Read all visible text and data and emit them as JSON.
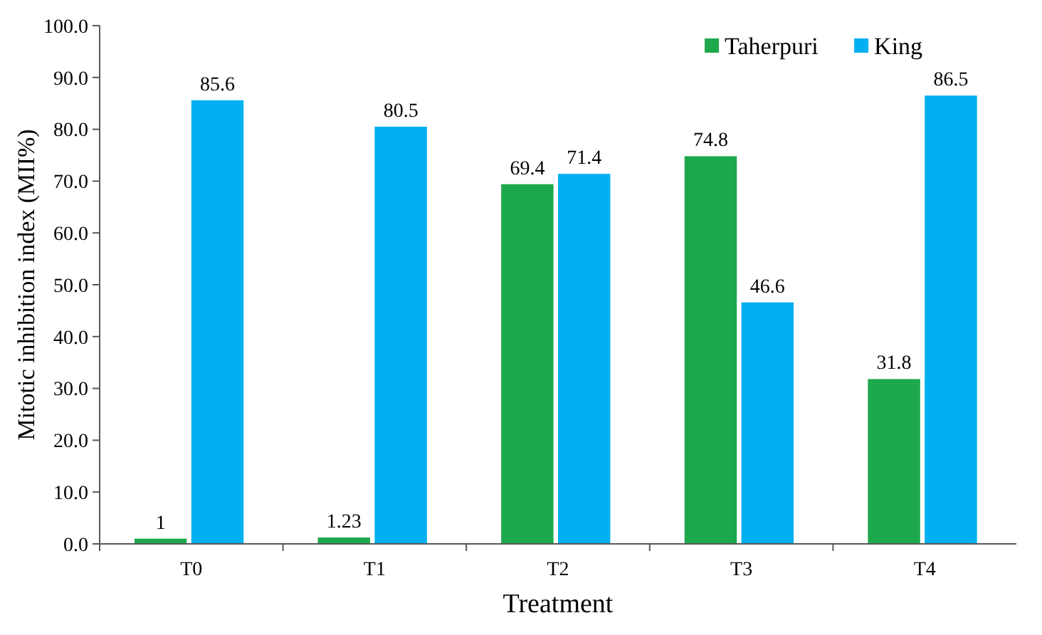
{
  "chart_data": {
    "type": "bar",
    "xlabel": "Treatment",
    "ylabel": "Mitotic inhibition index (MII%)",
    "categories": [
      "T0",
      "T1",
      "T2",
      "T3",
      "T4"
    ],
    "series": [
      {
        "name": "Taherpuri",
        "color": "#1ea84c",
        "values": [
          1,
          1.23,
          69.4,
          74.8,
          31.8
        ]
      },
      {
        "name": "King",
        "color": "#00b0f0",
        "values": [
          85.6,
          80.5,
          71.4,
          46.6,
          86.5
        ]
      }
    ],
    "ylim": [
      0,
      100
    ],
    "yticks": [
      {
        "value": 0,
        "label": "0.0"
      },
      {
        "value": 10,
        "label": "10.0"
      },
      {
        "value": 20,
        "label": "20.0"
      },
      {
        "value": 30,
        "label": "30.0"
      },
      {
        "value": 40,
        "label": "40.0"
      },
      {
        "value": 50,
        "label": "50.0"
      },
      {
        "value": 60,
        "label": "60.0"
      },
      {
        "value": 70,
        "label": "70.0"
      },
      {
        "value": 80,
        "label": "80.0"
      },
      {
        "value": 90,
        "label": "90.0"
      },
      {
        "value": 100,
        "label": "100.0"
      }
    ],
    "data_labels": true,
    "legend": "top right",
    "grid": false
  }
}
